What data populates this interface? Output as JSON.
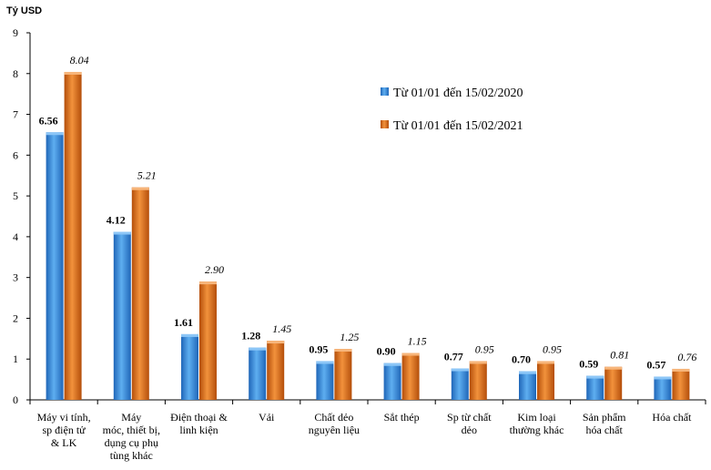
{
  "chart_data": {
    "type": "bar",
    "unit_label": "Tỷ USD",
    "ylim": [
      0,
      9
    ],
    "yticks": [
      "0",
      "1",
      "2",
      "3",
      "4",
      "5",
      "6",
      "7",
      "8",
      "9"
    ],
    "legend_position": "top-right",
    "grid": false,
    "categories": [
      [
        "Máy vi tính,",
        "sp điện tử",
        "& LK"
      ],
      [
        "Máy",
        "móc, thiết bị,",
        "dụng cụ phụ",
        "tùng khác"
      ],
      [
        "Điện thoại &",
        "linh kiện"
      ],
      [
        "Vải"
      ],
      [
        "Chất dẻo",
        "nguyên liệu"
      ],
      [
        "Sắt thép"
      ],
      [
        "Sp từ chất",
        "dẻo"
      ],
      [
        "Kim loại",
        "thường khác"
      ],
      [
        "Sản phẩm",
        "hóa chất"
      ],
      [
        "Hóa chất"
      ]
    ],
    "series": [
      {
        "name": "Từ 01/01 đến 15/02/2020",
        "color": "#3b8fd9",
        "values": [
          6.56,
          4.12,
          1.61,
          1.28,
          0.95,
          0.9,
          0.77,
          0.7,
          0.59,
          0.57
        ],
        "labels": [
          "6.56",
          "4.12",
          "1.61",
          "1.28",
          "0.95",
          "0.90",
          "0.77",
          "0.70",
          "0.59",
          "0.57"
        ]
      },
      {
        "name": "Từ 01/01 đến 15/02/2021",
        "color": "#e0701e",
        "values": [
          8.04,
          5.21,
          2.9,
          1.45,
          1.25,
          1.15,
          0.95,
          0.95,
          0.81,
          0.76
        ],
        "labels": [
          "8.04",
          "5.21",
          "2.90",
          "1.45",
          "1.25",
          "1.15",
          "0.95",
          "0.95",
          "0.81",
          "0.76"
        ]
      }
    ]
  }
}
